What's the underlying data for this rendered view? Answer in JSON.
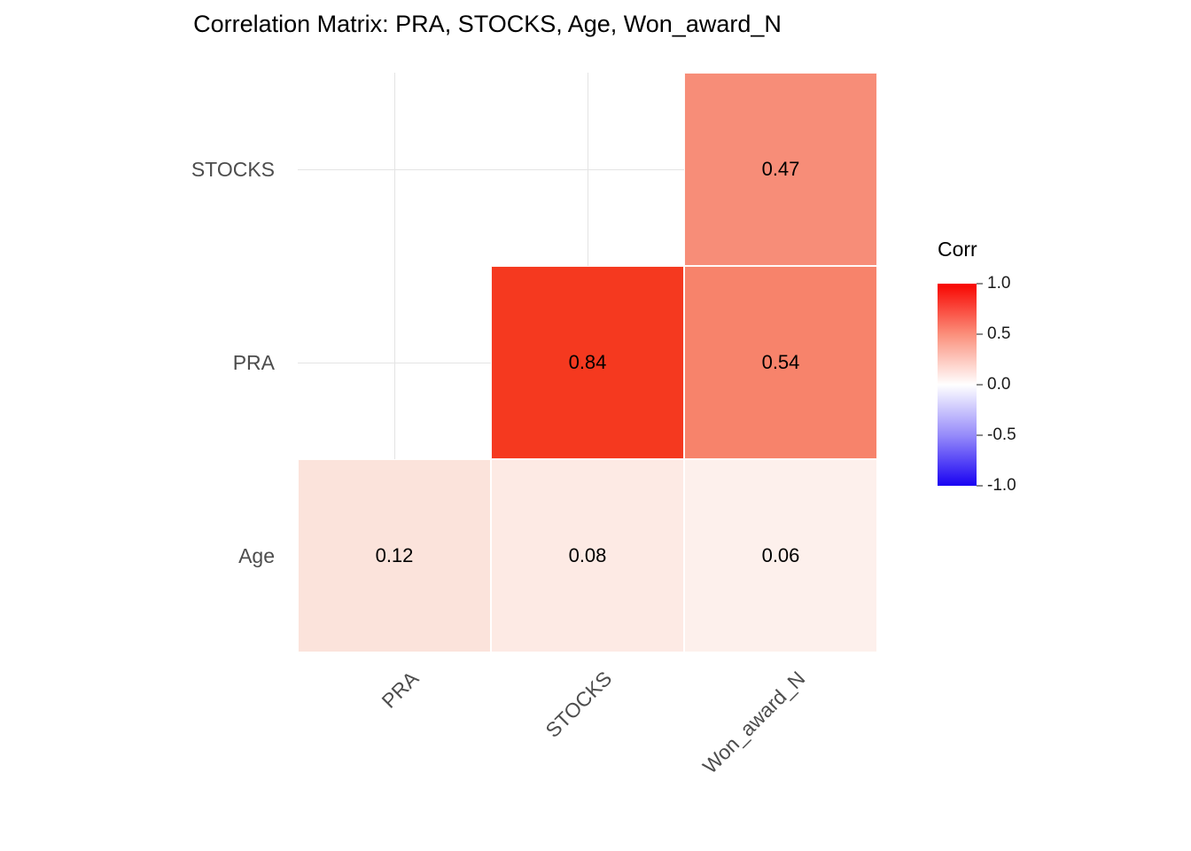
{
  "chart_data": {
    "type": "heatmap",
    "title": "Correlation Matrix: PRA, STOCKS, Age, Won_award_N",
    "x_categories": [
      "PRA",
      "STOCKS",
      "Won_award_N"
    ],
    "y_categories": [
      "STOCKS",
      "PRA",
      "Age"
    ],
    "cells": [
      {
        "row": 0,
        "col": 2,
        "x": "Won_award_N",
        "y": "STOCKS",
        "value": 0.47,
        "label": "0.47",
        "color": "#F78D78"
      },
      {
        "row": 1,
        "col": 1,
        "x": "STOCKS",
        "y": "PRA",
        "value": 0.84,
        "label": "0.84",
        "color": "#F5391F"
      },
      {
        "row": 1,
        "col": 2,
        "x": "Won_award_N",
        "y": "PRA",
        "value": 0.54,
        "label": "0.54",
        "color": "#F7836B"
      },
      {
        "row": 2,
        "col": 0,
        "x": "PRA",
        "y": "Age",
        "value": 0.12,
        "label": "0.12",
        "color": "#FBE3DB"
      },
      {
        "row": 2,
        "col": 1,
        "x": "STOCKS",
        "y": "Age",
        "value": 0.08,
        "label": "0.08",
        "color": "#FDEAE4"
      },
      {
        "row": 2,
        "col": 2,
        "x": "Won_award_N",
        "y": "Age",
        "value": 0.06,
        "label": "0.06",
        "color": "#FDF0EC"
      }
    ],
    "legend": {
      "title": "Corr",
      "ticks": [
        "1.0",
        "0.5",
        "0.0",
        "-0.5",
        "-1.0"
      ],
      "tick_values": [
        1.0,
        0.5,
        0.0,
        -0.5,
        -1.0
      ],
      "range": [
        -1.0,
        1.0
      ],
      "gradient": [
        "#F80400",
        "#FB8F7B",
        "#FFFFFF",
        "#968BFA",
        "#1902F2"
      ],
      "position": "right"
    },
    "grid": true,
    "colors": {
      "high": "#F80400",
      "mid": "#FFFFFF",
      "low": "#1902F2",
      "grid": "#E4E4E4"
    }
  }
}
